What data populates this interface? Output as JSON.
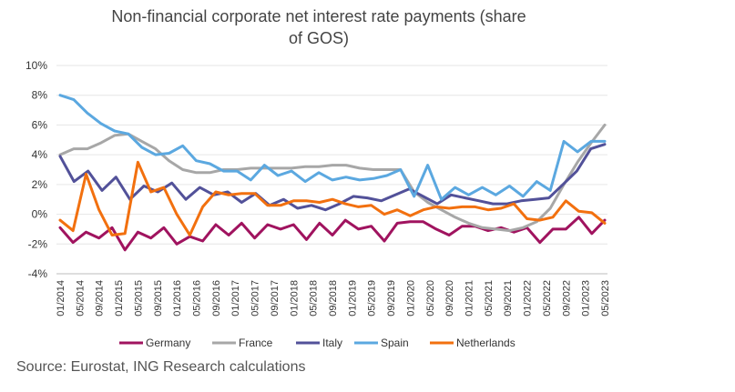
{
  "chart_data": {
    "type": "line",
    "title_line1": "Non-financial corporate net interest rate payments (share",
    "title_line2": "of GOS)",
    "xlabel": "",
    "ylabel": "",
    "ylim": [
      -4,
      10
    ],
    "y_ticks": [
      "10%",
      "8%",
      "6%",
      "4%",
      "2%",
      "0%",
      "-2%",
      "-4%"
    ],
    "y_tick_values": [
      10,
      8,
      6,
      4,
      2,
      0,
      -2,
      -4
    ],
    "grid": true,
    "legend_position": "bottom",
    "x_ticks": [
      "01/2014",
      "05/2014",
      "09/2014",
      "01/2015",
      "05/2015",
      "09/2015",
      "01/2016",
      "05/2016",
      "09/2016",
      "01/2017",
      "05/2017",
      "09/2017",
      "01/2018",
      "05/2018",
      "09/2018",
      "01/2019",
      "05/2019",
      "09/2019",
      "01/2020",
      "05/2020",
      "09/2020",
      "01/2021",
      "05/2021",
      "09/2021",
      "01/2022",
      "05/2022",
      "09/2022",
      "01/2023",
      "05/2023"
    ],
    "series": [
      {
        "name": "Germany",
        "color": "#a0135f",
        "values": [
          -0.9,
          -1.9,
          -1.2,
          -1.6,
          -0.9,
          -2.4,
          -1.2,
          -1.6,
          -0.9,
          -2.0,
          -1.5,
          -1.8,
          -0.7,
          -1.4,
          -0.6,
          -1.6,
          -0.7,
          -1.0,
          -0.7,
          -1.7,
          -0.6,
          -1.4,
          -0.4,
          -1.0,
          -0.8,
          -1.8,
          -0.6,
          -0.5,
          -0.5,
          -1.0,
          -1.4,
          -0.8,
          -0.8,
          -1.1,
          -0.9,
          -1.2,
          -0.9,
          -1.9,
          -1.0,
          -1.0,
          -0.2,
          -1.3,
          -0.4
        ]
      },
      {
        "name": "France",
        "color": "#a7a7a7",
        "values": [
          4.0,
          4.4,
          4.4,
          4.8,
          5.3,
          5.4,
          4.9,
          4.4,
          3.6,
          3.0,
          2.8,
          2.8,
          3.0,
          3.0,
          3.1,
          3.1,
          3.1,
          3.1,
          3.2,
          3.2,
          3.3,
          3.3,
          3.1,
          3.0,
          3.0,
          3.0,
          1.5,
          0.8,
          0.3,
          -0.2,
          -0.6,
          -0.9,
          -1.0,
          -1.1,
          -0.9,
          -0.5,
          0.4,
          2.0,
          3.5,
          4.8,
          6.0
        ]
      },
      {
        "name": "Italy",
        "color": "#525199",
        "values": [
          3.9,
          2.2,
          2.9,
          1.6,
          2.5,
          1.0,
          1.9,
          1.5,
          2.1,
          1.0,
          1.8,
          1.3,
          1.5,
          0.8,
          1.4,
          0.6,
          1.0,
          0.4,
          0.6,
          0.3,
          0.7,
          1.2,
          1.1,
          0.9,
          1.3,
          1.7,
          1.2,
          0.7,
          1.3,
          1.1,
          0.9,
          0.7,
          0.7,
          0.9,
          1.0,
          1.1,
          2.0,
          2.9,
          4.4,
          4.7
        ]
      },
      {
        "name": "Spain",
        "color": "#5ba8e0",
        "values": [
          8.0,
          7.7,
          6.8,
          6.1,
          5.6,
          5.4,
          4.5,
          4.0,
          4.1,
          4.6,
          3.6,
          3.4,
          2.9,
          2.9,
          2.3,
          3.3,
          2.6,
          2.9,
          2.2,
          2.8,
          2.3,
          2.5,
          2.3,
          2.4,
          2.6,
          3.0,
          1.2,
          3.3,
          1.0,
          1.8,
          1.3,
          1.8,
          1.3,
          1.9,
          1.2,
          2.2,
          1.6,
          4.9,
          4.2,
          4.9,
          4.9
        ]
      },
      {
        "name": "Netherlands",
        "color": "#f2700f",
        "values": [
          -0.4,
          -1.1,
          2.7,
          0.3,
          -1.4,
          -1.3,
          3.5,
          1.5,
          1.8,
          0.0,
          -1.4,
          0.5,
          1.5,
          1.3,
          1.4,
          1.4,
          0.6,
          0.6,
          0.9,
          0.9,
          0.8,
          1.0,
          0.7,
          0.5,
          0.6,
          0.0,
          0.3,
          -0.1,
          0.3,
          0.5,
          0.4,
          0.5,
          0.5,
          0.3,
          0.4,
          0.7,
          -0.3,
          -0.4,
          -0.2,
          0.9,
          0.2,
          0.1,
          -0.6
        ]
      }
    ]
  },
  "source_text": "Source: Eurostat, ING Research calculations"
}
